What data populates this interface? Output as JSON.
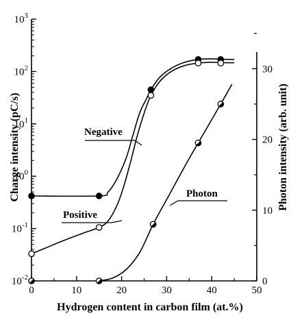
{
  "chart_data": {
    "type": "line",
    "title": "",
    "xlabel": "Hydrogen content in carbon film (at.%)",
    "ylabel_left": "Charge intensity (pC/s)",
    "ylabel_right": "Photon intensity  (arb. unit)",
    "x_range": [
      0,
      50
    ],
    "x_ticks": [
      0,
      10,
      20,
      30,
      40,
      50
    ],
    "y_left": {
      "scale": "log",
      "range": [
        0.01,
        1000
      ],
      "ticks": [
        {
          "value": 0.01,
          "base": "10",
          "exp": "-2"
        },
        {
          "value": 0.1,
          "base": "10",
          "exp": "-1"
        },
        {
          "value": 1,
          "base": "10",
          "exp": "0"
        },
        {
          "value": 10,
          "base": "10",
          "exp": "1"
        },
        {
          "value": 100,
          "base": "10",
          "exp": "2"
        },
        {
          "value": 1000,
          "base": "10",
          "exp": "3"
        }
      ]
    },
    "y_right": {
      "scale": "linear",
      "range": [
        0,
        37
      ],
      "ticks": [
        0,
        10,
        20,
        30
      ]
    },
    "grid": false,
    "series": [
      {
        "name": "Negative",
        "axis": "left",
        "marker": "filled-circle",
        "points": [
          {
            "x": 0,
            "y": 0.42
          },
          {
            "x": 15,
            "y": 0.42
          },
          {
            "x": 26.5,
            "y": 45
          },
          {
            "x": 37,
            "y": 170
          },
          {
            "x": 42,
            "y": 170
          }
        ],
        "curve": [
          [
            0,
            0.42
          ],
          [
            15,
            0.42
          ],
          [
            17,
            0.5
          ],
          [
            19,
            0.9
          ],
          [
            21,
            2.2
          ],
          [
            22.5,
            6
          ],
          [
            24,
            16
          ],
          [
            25.5,
            30
          ],
          [
            26.5,
            45
          ],
          [
            28.5,
            78
          ],
          [
            31,
            115
          ],
          [
            34,
            150
          ],
          [
            37,
            170
          ],
          [
            40,
            175
          ],
          [
            42,
            172
          ],
          [
            45,
            170
          ]
        ]
      },
      {
        "name": "Positive",
        "axis": "left",
        "marker": "open-circle",
        "points": [
          {
            "x": 0,
            "y": 0.033
          },
          {
            "x": 15,
            "y": 0.105
          },
          {
            "x": 26.5,
            "y": 35
          },
          {
            "x": 37,
            "y": 145
          },
          {
            "x": 42,
            "y": 145
          }
        ],
        "curve": [
          [
            0,
            0.033
          ],
          [
            3,
            0.042
          ],
          [
            6,
            0.054
          ],
          [
            9,
            0.068
          ],
          [
            12,
            0.085
          ],
          [
            15,
            0.105
          ],
          [
            17,
            0.14
          ],
          [
            19,
            0.28
          ],
          [
            20.5,
            0.65
          ],
          [
            22,
            1.9
          ],
          [
            23.5,
            6
          ],
          [
            25,
            16
          ],
          [
            26.5,
            35
          ],
          [
            28.5,
            65
          ],
          [
            31,
            100
          ],
          [
            34,
            130
          ],
          [
            37,
            145
          ],
          [
            40,
            150
          ],
          [
            42,
            148
          ],
          [
            45,
            147
          ]
        ]
      },
      {
        "name": "Photon",
        "axis": "right",
        "marker": "half-circle",
        "points": [
          {
            "x": 0,
            "y": 0
          },
          {
            "x": 15,
            "y": 0
          },
          {
            "x": 27,
            "y": 8
          },
          {
            "x": 37,
            "y": 19.5
          },
          {
            "x": 42,
            "y": 25
          }
        ],
        "curve": [
          [
            15,
            0
          ],
          [
            18,
            0.4
          ],
          [
            21,
            1.6
          ],
          [
            24,
            4
          ],
          [
            27,
            8
          ],
          [
            30,
            11.5
          ],
          [
            33,
            15
          ],
          [
            35,
            17.3
          ],
          [
            37,
            19.5
          ],
          [
            39,
            21.7
          ],
          [
            42,
            25
          ],
          [
            44.5,
            27.8
          ]
        ]
      }
    ],
    "annotations": [
      {
        "text": "Negative",
        "series": "Negative"
      },
      {
        "text": "Positive",
        "series": "Positive"
      },
      {
        "text": "Photon",
        "series": "Photon"
      }
    ]
  }
}
